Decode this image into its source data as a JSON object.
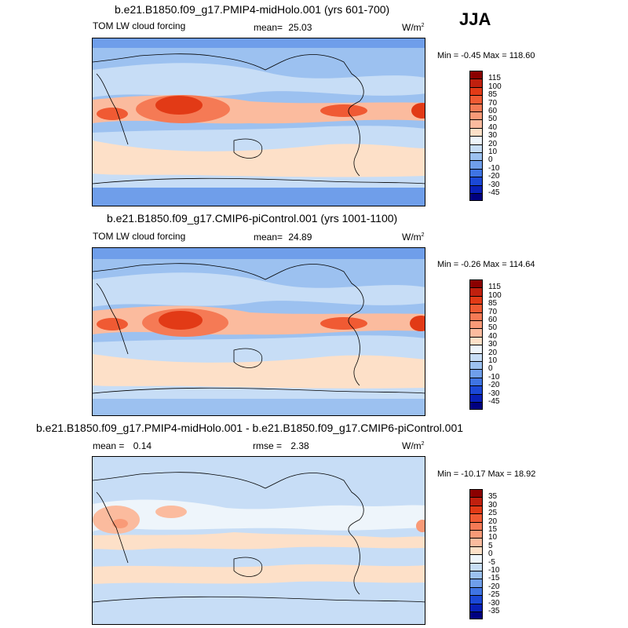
{
  "season": "JJA",
  "colors": {
    "coastline": "#000000"
  },
  "panels": [
    {
      "title": "b.e21.B1850.f09_g17.PMIP4-midHolo.001 (yrs 601-700)",
      "variable": "TOM LW cloud forcing",
      "mean_label": "mean=",
      "mean_value": "25.03",
      "units": "W/m",
      "units_exp": "2",
      "minmax": "Min =  -0.45 Max = 118.60",
      "colorbar_labels": [
        "115",
        "100",
        "85",
        "70",
        "60",
        "50",
        "40",
        "30",
        "20",
        "10",
        "0",
        "-10",
        "-20",
        "-30",
        "-45"
      ],
      "colorbar_colors": [
        "#8b0000",
        "#c0200e",
        "#e23a16",
        "#f05a33",
        "#f57a55",
        "#f99a77",
        "#fbbb9e",
        "#fde0c8",
        "#eef5fb",
        "#c7ddf6",
        "#9cc1f0",
        "#6f9eea",
        "#3f74e3",
        "#1b48d6",
        "#0820b8",
        "#000080"
      ]
    },
    {
      "title": "b.e21.B1850.f09_g17.CMIP6-piControl.001 (yrs 1001-1100)",
      "variable": "TOM LW cloud forcing",
      "mean_label": "mean=",
      "mean_value": "24.89",
      "units": "W/m",
      "units_exp": "2",
      "minmax": "Min =  -0.26 Max = 114.64",
      "colorbar_labels": [
        "115",
        "100",
        "85",
        "70",
        "60",
        "50",
        "40",
        "30",
        "20",
        "10",
        "0",
        "-10",
        "-20",
        "-30",
        "-45"
      ],
      "colorbar_colors": [
        "#8b0000",
        "#c0200e",
        "#e23a16",
        "#f05a33",
        "#f57a55",
        "#f99a77",
        "#fbbb9e",
        "#fde0c8",
        "#eef5fb",
        "#c7ddf6",
        "#9cc1f0",
        "#6f9eea",
        "#3f74e3",
        "#1b48d6",
        "#0820b8",
        "#000080"
      ]
    },
    {
      "title": "b.e21.B1850.f09_g17.PMIP4-midHolo.001 - b.e21.B1850.f09_g17.CMIP6-piControl.001",
      "mean_label": "mean =",
      "mean_value": "0.14",
      "rmse_label": "rmse =",
      "rmse_value": "2.38",
      "units": "W/m",
      "units_exp": "2",
      "minmax": "Min = -10.17 Max =  18.92",
      "colorbar_labels": [
        "35",
        "30",
        "25",
        "20",
        "15",
        "10",
        "5",
        "0",
        "-5",
        "-10",
        "-15",
        "-20",
        "-25",
        "-30",
        "-35"
      ],
      "colorbar_colors": [
        "#8b0000",
        "#c0200e",
        "#e23a16",
        "#f05a33",
        "#f57a55",
        "#f99a77",
        "#fbbb9e",
        "#fde0c8",
        "#eef5fb",
        "#c7ddf6",
        "#9cc1f0",
        "#6f9eea",
        "#3f74e3",
        "#1b48d6",
        "#0820b8",
        "#000080"
      ]
    }
  ]
}
